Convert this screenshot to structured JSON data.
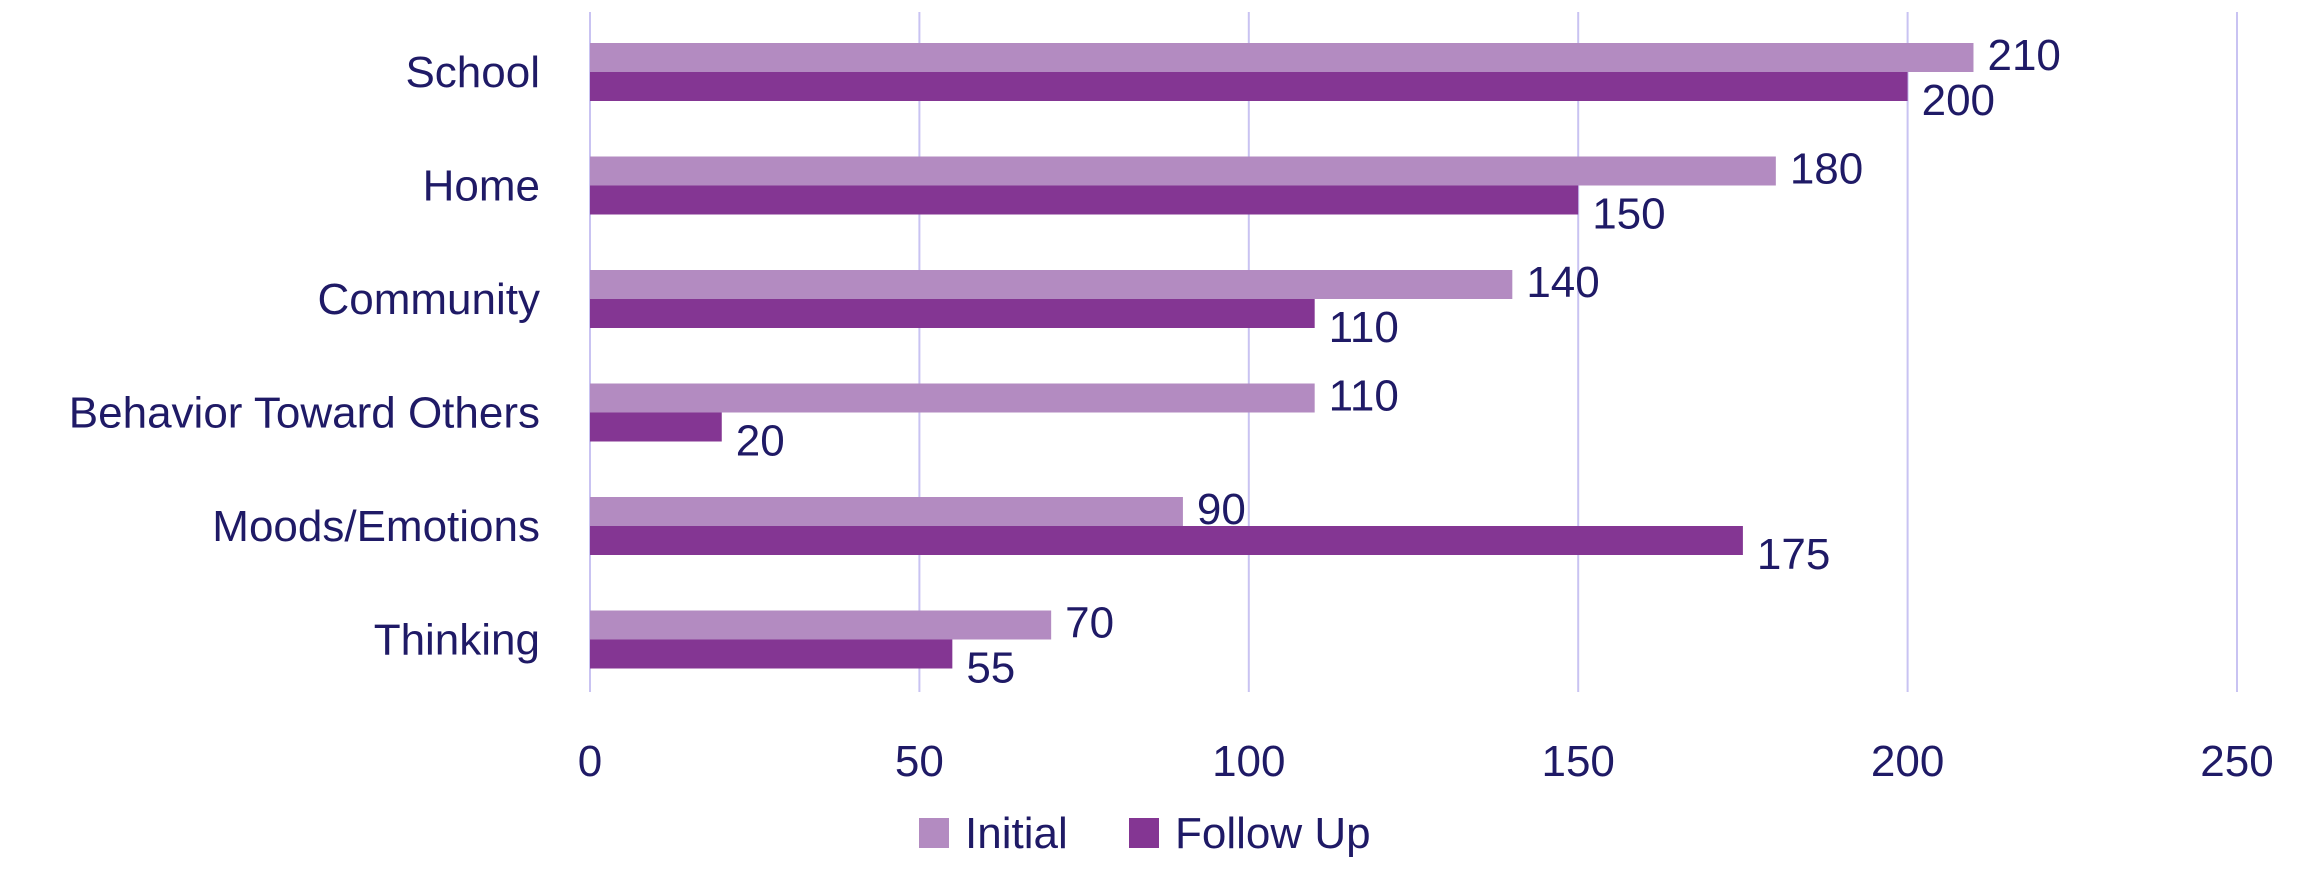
{
  "chart_data": {
    "type": "bar",
    "orientation": "horizontal",
    "categories": [
      "School",
      "Home",
      "Community",
      "Behavior Toward Others",
      "Moods/Emotions",
      "Thinking"
    ],
    "series": [
      {
        "name": "Initial",
        "values": [
          210,
          180,
          140,
          110,
          90,
          70
        ],
        "color": "#B38BC1"
      },
      {
        "name": "Follow Up",
        "values": [
          200,
          150,
          110,
          20,
          175,
          55
        ],
        "color": "#843693"
      }
    ],
    "xlim": [
      0,
      250
    ],
    "xticks": [
      0,
      50,
      100,
      150,
      200,
      250
    ],
    "grid": "vertical",
    "legend": "bottom",
    "data_labels": true,
    "title": "",
    "xlabel": "",
    "ylabel": ""
  },
  "style": {
    "text_color": "#1F1A66",
    "grid_color": "#C9C3F2"
  }
}
